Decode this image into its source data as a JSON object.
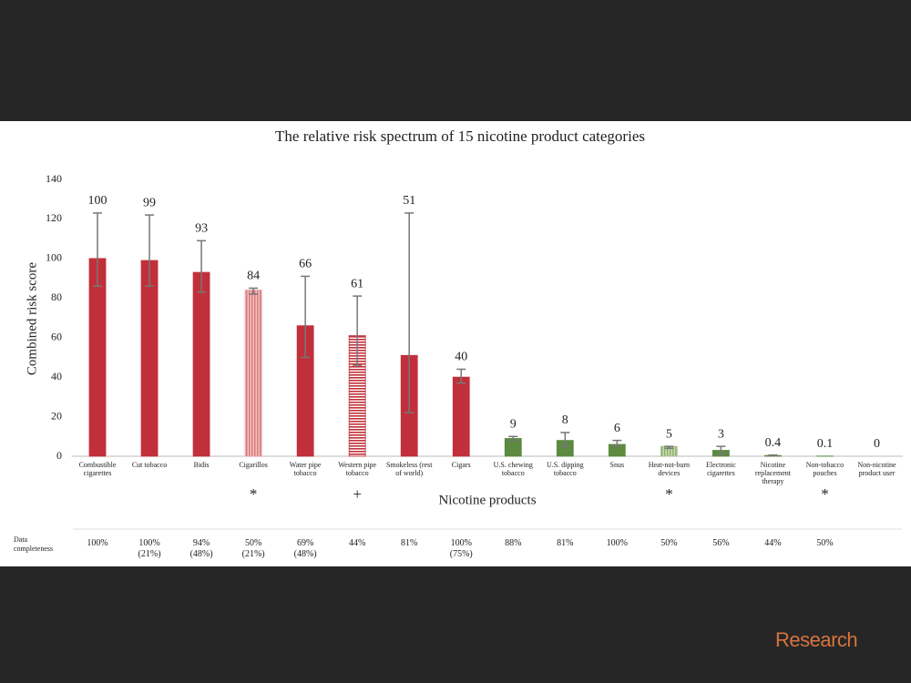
{
  "chart_data": {
    "type": "bar",
    "title": "The relative risk spectrum of 15 nicotine product categories",
    "ylabel": "Combined risk score",
    "xlabel": "Nicotine products",
    "categories": [
      "Combustible cigarettes",
      "Cut tobacco",
      "Bidis",
      "Cigarillos",
      "Water pipe tobacco",
      "Western pipe tobacco",
      "Smokeless (rest of world)",
      "Cigars",
      "U.S. chewing tobacco",
      "U.S. dipping tobacco",
      "Snus",
      "Heat-not-burn devices",
      "Electronic cigarettes",
      "Nicotine replacement therapy",
      "Non-tobacco pouches",
      "Non-nicotine product user"
    ],
    "values": [
      100,
      99,
      93,
      84,
      66,
      61,
      51,
      40,
      9,
      8,
      6,
      5,
      3,
      0.4,
      0.1,
      0
    ],
    "ci_low": [
      86,
      86,
      83,
      82,
      50,
      46,
      22,
      37,
      8,
      5,
      5,
      4,
      1,
      0.2,
      null,
      null
    ],
    "ci_high": [
      123,
      122,
      109,
      85,
      91,
      81,
      123,
      44,
      10,
      12,
      8,
      5,
      5,
      0.6,
      null,
      null
    ],
    "colors": [
      "#c1303a",
      "#c1303a",
      "#c1303a",
      "#e49a9c",
      "#c1303a",
      "#c1303a",
      "#c1303a",
      "#c1303a",
      "#5b8a40",
      "#5b8a40",
      "#5b8a40",
      "#a9c48f",
      "#5b8a40",
      "#5b8a40",
      "#5b8a40",
      "#5b8a40"
    ],
    "styles": [
      "solid",
      "solid",
      "solid",
      "vertical-stripes",
      "solid",
      "horizontal-stripes",
      "solid",
      "solid",
      "solid",
      "solid",
      "solid",
      "vertical-stripes",
      "solid",
      "solid",
      "solid",
      "solid"
    ],
    "markers": [
      null,
      null,
      null,
      "*",
      null,
      "+",
      null,
      null,
      null,
      null,
      null,
      "*",
      null,
      null,
      "*",
      null
    ],
    "ylim": [
      0,
      140
    ],
    "yticks": [
      0,
      20,
      40,
      60,
      80,
      100,
      120,
      140
    ],
    "completeness_label": "Data completeness",
    "completeness": [
      "100%",
      "100%",
      "94%",
      "50%",
      "69%",
      "44%",
      "81%",
      "100%",
      "88%",
      "81%",
      "100%",
      "50%",
      "56%",
      "44%",
      "50%",
      null
    ],
    "completeness_sub": [
      null,
      "(21%)",
      "(48%)",
      "(21%)",
      "(48%)",
      null,
      null,
      "(75%)",
      null,
      null,
      null,
      null,
      null,
      null,
      null,
      null
    ]
  },
  "branding": "Research"
}
